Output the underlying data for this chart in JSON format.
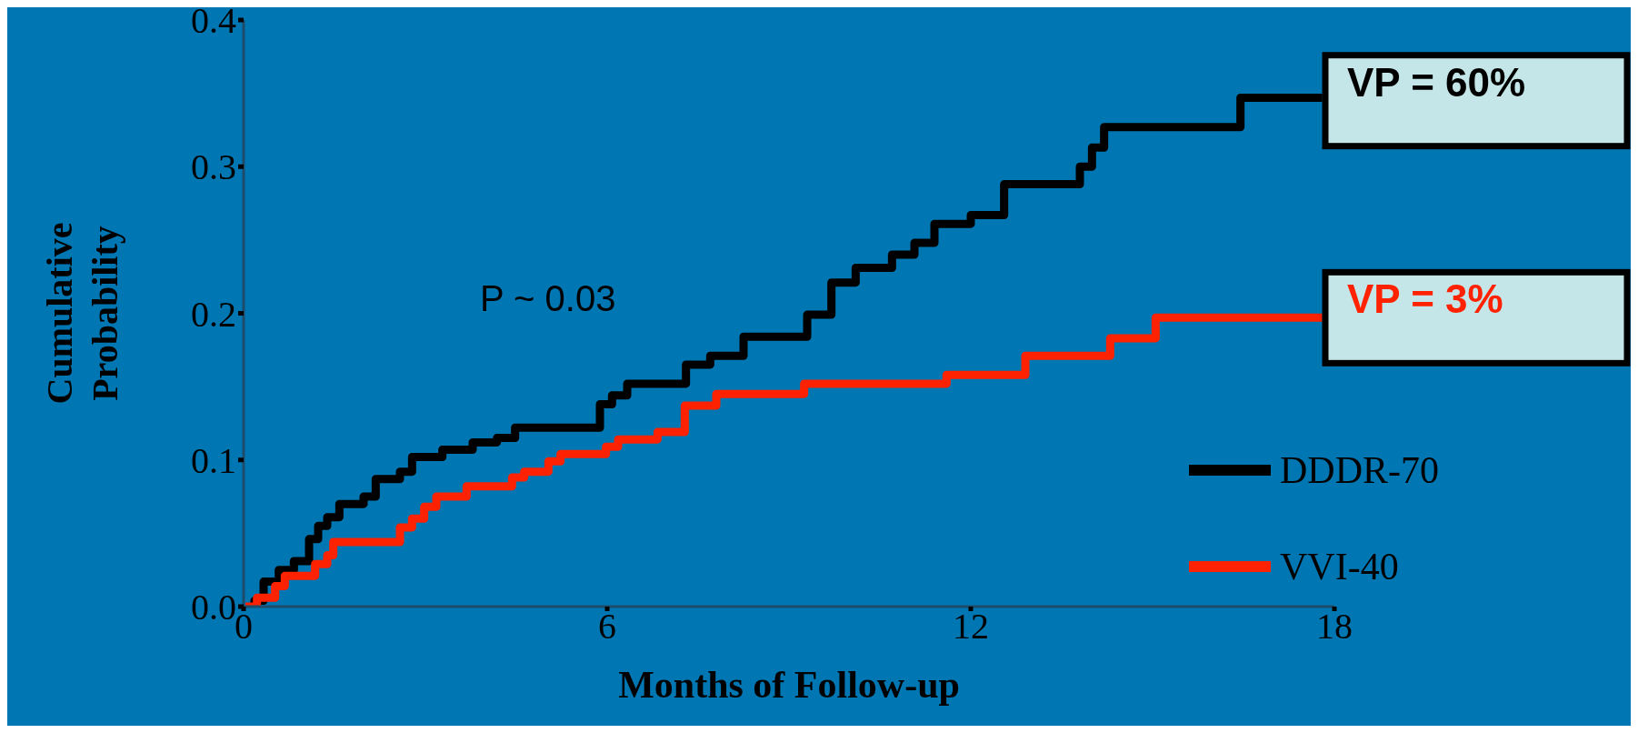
{
  "chart_data": {
    "type": "step",
    "xlabel": "Months of Follow-up",
    "ylabel": "Cumulative Probability",
    "xlim": [
      0,
      18
    ],
    "xticks": [
      0,
      6,
      12,
      18
    ],
    "ylim": [
      0,
      0.4
    ],
    "yticks": [
      {
        "value": 0,
        "label": "0.0"
      },
      0.1,
      0.2,
      0.3,
      0.4
    ],
    "legend": "bottom right",
    "grid": false,
    "marker": "none",
    "line_style": "solid",
    "annotations": [
      "P ~ 0.03",
      {
        "text": "VP = 60%",
        "x": 17.85,
        "y": 0.345
      },
      {
        "text": "VP = 3%",
        "x": 17.85,
        "y": 0.197
      }
    ],
    "series": [
      {
        "name": "DDDR-70",
        "color": "#000000",
        "x": [
          0.1,
          0.18,
          0.33,
          0.58,
          0.83,
          1.08,
          1.23,
          1.38,
          1.58,
          1.98,
          2.18,
          2.58,
          2.78,
          3.28,
          3.78,
          4.18,
          4.48,
          5.88,
          6.08,
          6.33,
          7.3,
          7.7,
          8.25,
          9.3,
          9.7,
          10.1,
          10.7,
          11.07,
          11.4,
          12.0,
          12.55,
          13.8,
          14.0,
          14.2,
          16.45,
          17.8
        ],
        "values": [
          0,
          0.004,
          0.017,
          0.025,
          0.031,
          0.046,
          0.055,
          0.061,
          0.07,
          0.075,
          0.087,
          0.092,
          0.102,
          0.107,
          0.112,
          0.115,
          0.122,
          0.138,
          0.144,
          0.152,
          0.165,
          0.171,
          0.184,
          0.199,
          0.221,
          0.231,
          0.24,
          0.248,
          0.261,
          0.267,
          0.288,
          0.3,
          0.313,
          0.327,
          0.347,
          0.347
        ]
      },
      {
        "name": "VVI-40",
        "color": "#ff2200",
        "x": [
          0.03,
          0.22,
          0.52,
          0.68,
          1.18,
          1.38,
          1.48,
          2.58,
          2.78,
          2.98,
          3.18,
          3.68,
          4.43,
          4.63,
          5.03,
          5.23,
          5.98,
          6.18,
          6.83,
          7.28,
          7.8,
          9.25,
          11.6,
          12.9,
          14.3,
          15.05,
          17.8
        ],
        "values": [
          0,
          0.006,
          0.014,
          0.021,
          0.029,
          0.035,
          0.044,
          0.054,
          0.06,
          0.068,
          0.075,
          0.082,
          0.088,
          0.092,
          0.099,
          0.104,
          0.109,
          0.114,
          0.119,
          0.137,
          0.145,
          0.152,
          0.158,
          0.171,
          0.183,
          0.197,
          0.197
        ]
      }
    ]
  }
}
